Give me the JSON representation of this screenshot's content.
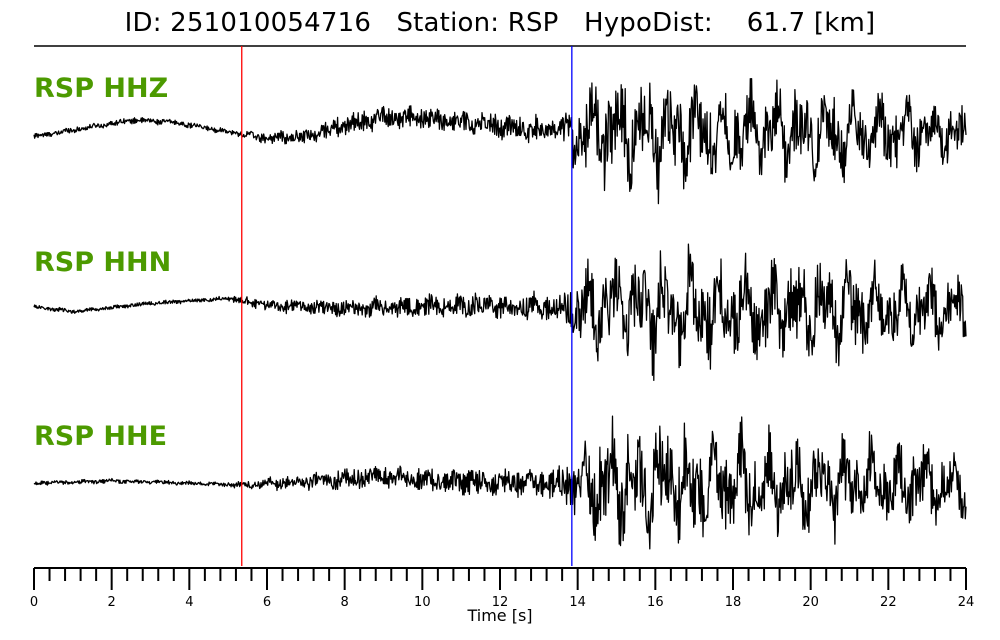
{
  "title": "ID: 251010054716   Station: RSP   HypoDist:    61.7 [km]",
  "chart_data": {
    "type": "line",
    "title": "ID: 251010054716   Station: RSP   HypoDist:    61.7 [km]",
    "xlabel": "Time [s]",
    "ylabel": "",
    "xlim": [
      0,
      24
    ],
    "x_ticks": [
      0,
      2,
      4,
      6,
      8,
      10,
      12,
      14,
      16,
      18,
      20,
      22,
      24
    ],
    "minor_tick_step": 0.4,
    "grid": false,
    "picks": [
      {
        "phase": "P",
        "time": 5.35,
        "color": "#ff0000"
      },
      {
        "phase": "S",
        "time": 13.85,
        "color": "#0000ff"
      }
    ],
    "series": [
      {
        "name": "RSP HHZ",
        "color": "#000000",
        "envelope": [
          [
            0,
            0.08
          ],
          [
            5,
            0.06
          ],
          [
            5.4,
            0.1
          ],
          [
            8,
            0.25
          ],
          [
            11,
            0.28
          ],
          [
            13.5,
            0.3
          ],
          [
            13.85,
            0.6
          ],
          [
            14.5,
            0.95
          ],
          [
            15.5,
            1.0
          ],
          [
            18,
            0.85
          ],
          [
            21,
            0.75
          ],
          [
            24,
            0.55
          ]
        ],
        "trend": [
          [
            0,
            -0.05
          ],
          [
            1,
            0.15
          ],
          [
            2.5,
            0.45
          ],
          [
            3.5,
            0.4
          ],
          [
            5,
            0.1
          ],
          [
            6,
            -0.1
          ],
          [
            7,
            -0.05
          ],
          [
            8,
            0.3
          ],
          [
            9,
            0.55
          ],
          [
            11,
            0.4
          ],
          [
            13,
            0.15
          ],
          [
            14,
            0.1
          ],
          [
            24,
            0.05
          ]
        ]
      },
      {
        "name": "RSP HHN",
        "color": "#000000",
        "envelope": [
          [
            0,
            0.05
          ],
          [
            5,
            0.05
          ],
          [
            5.4,
            0.12
          ],
          [
            8,
            0.22
          ],
          [
            11,
            0.28
          ],
          [
            13.5,
            0.35
          ],
          [
            13.85,
            0.6
          ],
          [
            14.5,
            0.9
          ],
          [
            16,
            1.0
          ],
          [
            18,
            0.95
          ],
          [
            21,
            0.85
          ],
          [
            24,
            0.6
          ]
        ],
        "trend": [
          [
            0,
            0.1
          ],
          [
            1,
            -0.05
          ],
          [
            3,
            0.2
          ],
          [
            5,
            0.35
          ],
          [
            6,
            0.15
          ],
          [
            8,
            0.05
          ],
          [
            10,
            0.1
          ],
          [
            12,
            0.12
          ],
          [
            14,
            0.05
          ],
          [
            24,
            0.0
          ]
        ]
      },
      {
        "name": "RSP HHE",
        "color": "#000000",
        "envelope": [
          [
            0,
            0.05
          ],
          [
            5,
            0.05
          ],
          [
            5.4,
            0.1
          ],
          [
            8,
            0.25
          ],
          [
            11,
            0.3
          ],
          [
            13.5,
            0.35
          ],
          [
            13.85,
            0.6
          ],
          [
            14.5,
            1.0
          ],
          [
            16,
            1.0
          ],
          [
            18,
            0.9
          ],
          [
            21,
            0.8
          ],
          [
            24,
            0.6
          ]
        ],
        "trend": [
          [
            0,
            0.05
          ],
          [
            2,
            0.12
          ],
          [
            4,
            0.05
          ],
          [
            5.5,
            0.0
          ],
          [
            7,
            0.1
          ],
          [
            9,
            0.25
          ],
          [
            11,
            0.1
          ],
          [
            13,
            0.05
          ],
          [
            24,
            0.0
          ]
        ]
      }
    ]
  }
}
